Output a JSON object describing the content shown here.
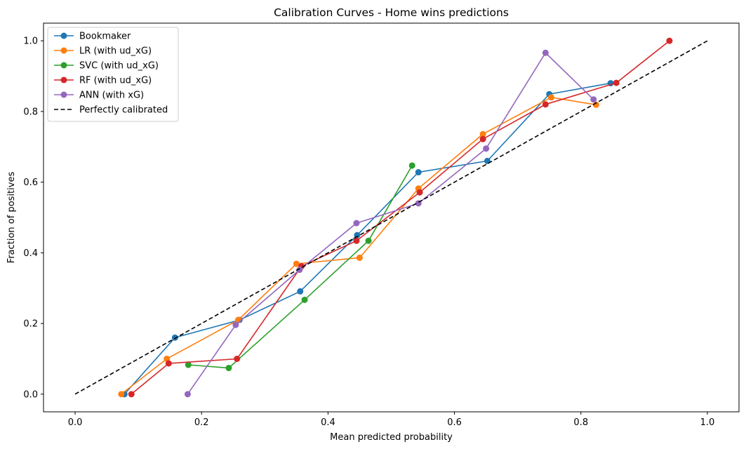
{
  "chart_data": {
    "type": "line",
    "title": "Calibration Curves - Home wins predictions",
    "xlabel": "Mean predicted probability",
    "ylabel": "Fraction of positives",
    "xlim": [
      -0.05,
      1.05
    ],
    "ylim": [
      -0.05,
      1.05
    ],
    "xticks": [
      0.0,
      0.2,
      0.4,
      0.6,
      0.8,
      1.0
    ],
    "xtick_labels": [
      "0.0",
      "0.2",
      "0.4",
      "0.6",
      "0.8",
      "1.0"
    ],
    "yticks": [
      0.0,
      0.2,
      0.4,
      0.6,
      0.8,
      1.0
    ],
    "ytick_labels": [
      "0.0",
      "0.2",
      "0.4",
      "0.6",
      "0.8",
      "1.0"
    ],
    "grid": false,
    "legend_position": "top-left",
    "series": [
      {
        "name": "Bookmaker",
        "color": "#1f77b4",
        "marker": "circle",
        "x": [
          0.078,
          0.158,
          0.26,
          0.356,
          0.446,
          0.543,
          0.652,
          0.75,
          0.847
        ],
        "y": [
          0.0,
          0.16,
          0.21,
          0.291,
          0.45,
          0.628,
          0.66,
          0.849,
          0.88
        ]
      },
      {
        "name": "LR (with ud_xG)",
        "color": "#ff7f0e",
        "marker": "circle",
        "x": [
          0.073,
          0.145,
          0.258,
          0.35,
          0.45,
          0.543,
          0.645,
          0.753,
          0.824
        ],
        "y": [
          0.0,
          0.1,
          0.21,
          0.369,
          0.386,
          0.582,
          0.736,
          0.84,
          0.819
        ]
      },
      {
        "name": "SVC (with ud_xG)",
        "color": "#2ca02c",
        "marker": "circle",
        "x": [
          0.179,
          0.243,
          0.363,
          0.464,
          0.533
        ],
        "y": [
          0.083,
          0.074,
          0.267,
          0.434,
          0.647
        ]
      },
      {
        "name": "RF (with ud_xG)",
        "color": "#d62728",
        "marker": "circle",
        "x": [
          0.089,
          0.148,
          0.256,
          0.358,
          0.445,
          0.545,
          0.645,
          0.744,
          0.856,
          0.94
        ],
        "y": [
          0.0,
          0.087,
          0.1,
          0.362,
          0.434,
          0.571,
          0.722,
          0.82,
          0.881,
          1.0
        ]
      },
      {
        "name": "ANN (with xG)",
        "color": "#9467bd",
        "marker": "circle",
        "x": [
          0.178,
          0.254,
          0.355,
          0.445,
          0.543,
          0.65,
          0.744,
          0.82
        ],
        "y": [
          0.0,
          0.196,
          0.352,
          0.484,
          0.54,
          0.695,
          0.966,
          0.834
        ]
      },
      {
        "name": "Perfectly calibrated",
        "color": "#000000",
        "marker": "none",
        "dashed": true,
        "x": [
          0.0,
          1.0
        ],
        "y": [
          0.0,
          1.0
        ]
      }
    ]
  }
}
